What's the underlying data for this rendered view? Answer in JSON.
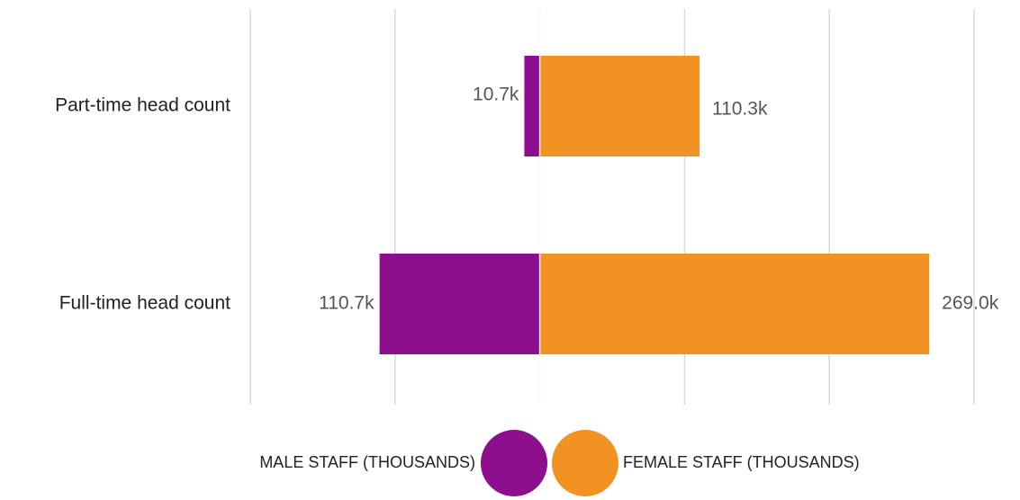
{
  "chart_data": {
    "type": "diverging_bar",
    "categories": [
      "Part-time head count",
      "Full-time head count"
    ],
    "series": [
      {
        "name": "MALE STAFF (THOUSANDS)",
        "color": "#8e0f8e",
        "values": [
          10.7,
          110.7
        ],
        "value_labels": [
          "10.7k",
          "110.7k"
        ]
      },
      {
        "name": "FEMALE STAFF (THOUSANDS)",
        "color": "#f29222",
        "values": [
          110.3,
          269.0
        ],
        "value_labels": [
          "110.3k",
          "269.0k"
        ]
      }
    ],
    "xlim": [
      -200,
      300
    ],
    "xticks": [
      -200,
      -100,
      0,
      100,
      200,
      300
    ],
    "grid": true
  }
}
